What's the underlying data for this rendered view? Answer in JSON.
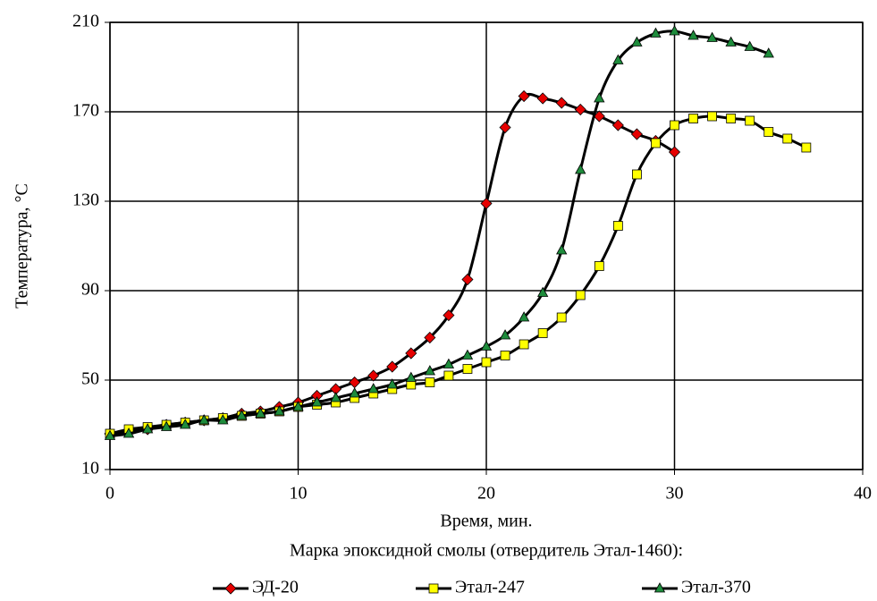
{
  "chart_data": {
    "type": "line",
    "xlabel": "Время, мин.",
    "ylabel": "Температура, °C",
    "legend_title": "Марка эпоксидной смолы (отвердитель Этал-1460):",
    "legend_position": "bottom",
    "grid": true,
    "line_color": "#000000",
    "xlim": [
      0,
      40
    ],
    "xticks": [
      0,
      10,
      20,
      30,
      40
    ],
    "ylim": [
      10,
      210
    ],
    "yticks": [
      10,
      50,
      90,
      130,
      170,
      210
    ],
    "series": [
      {
        "name": "ЭД-20",
        "color": "#e60000",
        "marker": "diamond",
        "x": [
          0,
          1,
          2,
          3,
          4,
          5,
          6,
          7,
          8,
          9,
          10,
          11,
          12,
          13,
          14,
          15,
          16,
          17,
          18,
          19,
          20,
          21,
          22,
          23,
          24,
          25,
          26,
          27,
          28,
          29,
          30
        ],
        "values": [
          26,
          27,
          28,
          30,
          31,
          32,
          33,
          35,
          36,
          38,
          40,
          43,
          46,
          49,
          52,
          56,
          62,
          69,
          79,
          95,
          129,
          163,
          177,
          176,
          174,
          171,
          168,
          164,
          160,
          157,
          152
        ]
      },
      {
        "name": "Этал-247",
        "color": "#ffff00",
        "marker": "square",
        "x": [
          0,
          1,
          2,
          3,
          4,
          5,
          6,
          7,
          8,
          9,
          10,
          11,
          12,
          13,
          14,
          15,
          16,
          17,
          18,
          19,
          20,
          21,
          22,
          23,
          24,
          25,
          26,
          27,
          28,
          29,
          30,
          31,
          32,
          33,
          34,
          35,
          36,
          37
        ],
        "values": [
          26,
          28,
          29,
          30,
          31,
          32,
          33,
          34,
          35,
          36,
          38,
          39,
          40,
          42,
          44,
          46,
          48,
          49,
          52,
          55,
          58,
          61,
          66,
          71,
          78,
          88,
          101,
          119,
          142,
          156,
          164,
          167,
          168,
          167,
          166,
          161,
          158,
          154
        ]
      },
      {
        "name": "Этал-370",
        "color": "#1e8c3c",
        "marker": "triangle",
        "x": [
          0,
          1,
          2,
          3,
          4,
          5,
          6,
          7,
          8,
          9,
          10,
          11,
          12,
          13,
          14,
          15,
          16,
          17,
          18,
          19,
          20,
          21,
          22,
          23,
          24,
          25,
          26,
          27,
          28,
          29,
          30,
          31,
          32,
          33,
          34,
          35
        ],
        "values": [
          25,
          26,
          28,
          29,
          30,
          32,
          32,
          34,
          35,
          36,
          38,
          40,
          42,
          44,
          46,
          48,
          51,
          54,
          57,
          61,
          65,
          70,
          78,
          89,
          108,
          144,
          176,
          193,
          201,
          205,
          206,
          204,
          203,
          201,
          199,
          196
        ]
      }
    ]
  }
}
